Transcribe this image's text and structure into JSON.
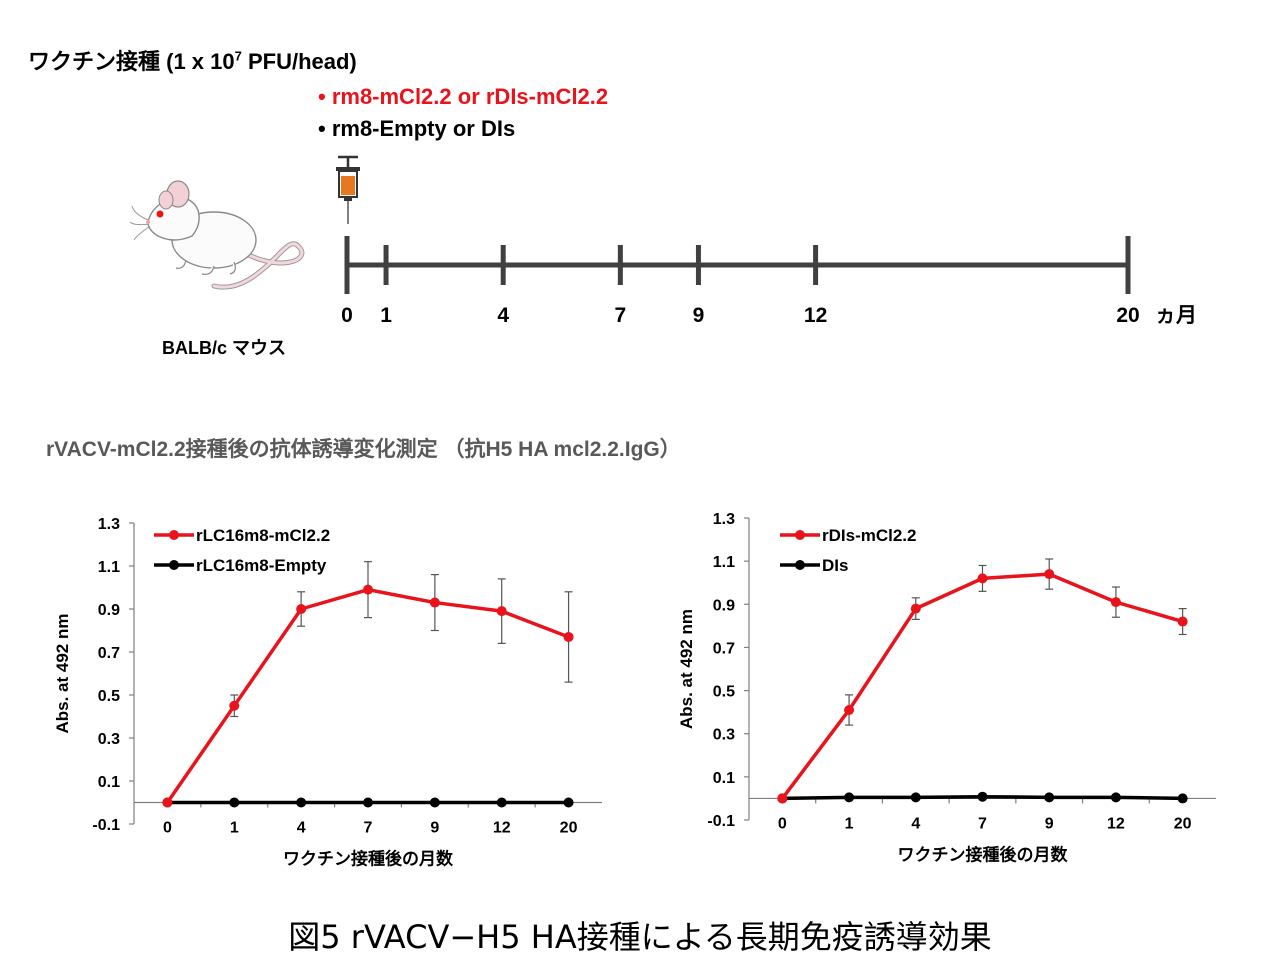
{
  "header": {
    "vaccine_title_prefix": "ワクチン接種 (1 x 10",
    "vaccine_title_exp": "7",
    "vaccine_title_suffix": " PFU/head)",
    "bullet_red": "• rm8-mCl2.2 or rDIs-mCl2.2",
    "bullet_black": "• rm8-Empty or DIs",
    "mouse_label": "BALB/c マウス"
  },
  "timeline": {
    "ticks": [
      "0",
      "1",
      "4",
      "7",
      "9",
      "12",
      "20"
    ],
    "tick_months": [
      0,
      1,
      4,
      7,
      9,
      12,
      20
    ],
    "unit": "ヵ月"
  },
  "section_title": "rVACV-mCl2.2接種後の抗体誘導変化測定 （抗H5 HA mcl2.2.IgG）",
  "figure_caption": "図5 rVACV−H5 HA接種による長期免疫誘導効果",
  "colors": {
    "red": "#e8131b",
    "black": "#000000",
    "gray_text": "#595959"
  },
  "chart_data": [
    {
      "type": "line",
      "title": "",
      "xlabel": "ワクチン接種後の月数",
      "ylabel": "Abs. at 492 nm",
      "categories": [
        "0",
        "1",
        "4",
        "7",
        "9",
        "12",
        "20"
      ],
      "yticks": [
        "1.3",
        "1.1",
        "0.9",
        "0.7",
        "0.5",
        "0.3",
        "0.1",
        "-0.1"
      ],
      "ylim": [
        -0.1,
        1.3
      ],
      "legend_position": "top-left",
      "series": [
        {
          "name": "rLC16m8-mCl2.2",
          "color": "#e8131b",
          "values": [
            0.0,
            0.45,
            0.9,
            0.99,
            0.93,
            0.89,
            0.77
          ],
          "errors": [
            0.0,
            0.05,
            0.08,
            0.13,
            0.13,
            0.15,
            0.21
          ]
        },
        {
          "name": "rLC16m8-Empty",
          "color": "#000000",
          "values": [
            0.0,
            0.0,
            0.0,
            0.0,
            0.0,
            0.0,
            0.0
          ],
          "errors": [
            0,
            0,
            0,
            0,
            0,
            0,
            0
          ]
        }
      ]
    },
    {
      "type": "line",
      "title": "",
      "xlabel": "ワクチン接種後の月数",
      "ylabel": "Abs. at 492 nm",
      "categories": [
        "0",
        "1",
        "4",
        "7",
        "9",
        "12",
        "20"
      ],
      "yticks": [
        "1.3",
        "1.1",
        "0.9",
        "0.7",
        "0.5",
        "0.3",
        "0.1",
        "-0.1"
      ],
      "ylim": [
        -0.1,
        1.3
      ],
      "legend_position": "top-left",
      "series": [
        {
          "name": "rDIs-mCl2.2",
          "color": "#e8131b",
          "values": [
            0.0,
            0.41,
            0.88,
            1.02,
            1.04,
            0.91,
            0.82
          ],
          "errors": [
            0.0,
            0.07,
            0.05,
            0.06,
            0.07,
            0.07,
            0.06
          ]
        },
        {
          "name": "DIs",
          "color": "#000000",
          "values": [
            0.0,
            0.005,
            0.005,
            0.008,
            0.005,
            0.005,
            0.0
          ],
          "errors": [
            0,
            0,
            0,
            0,
            0,
            0,
            0
          ]
        }
      ]
    }
  ]
}
